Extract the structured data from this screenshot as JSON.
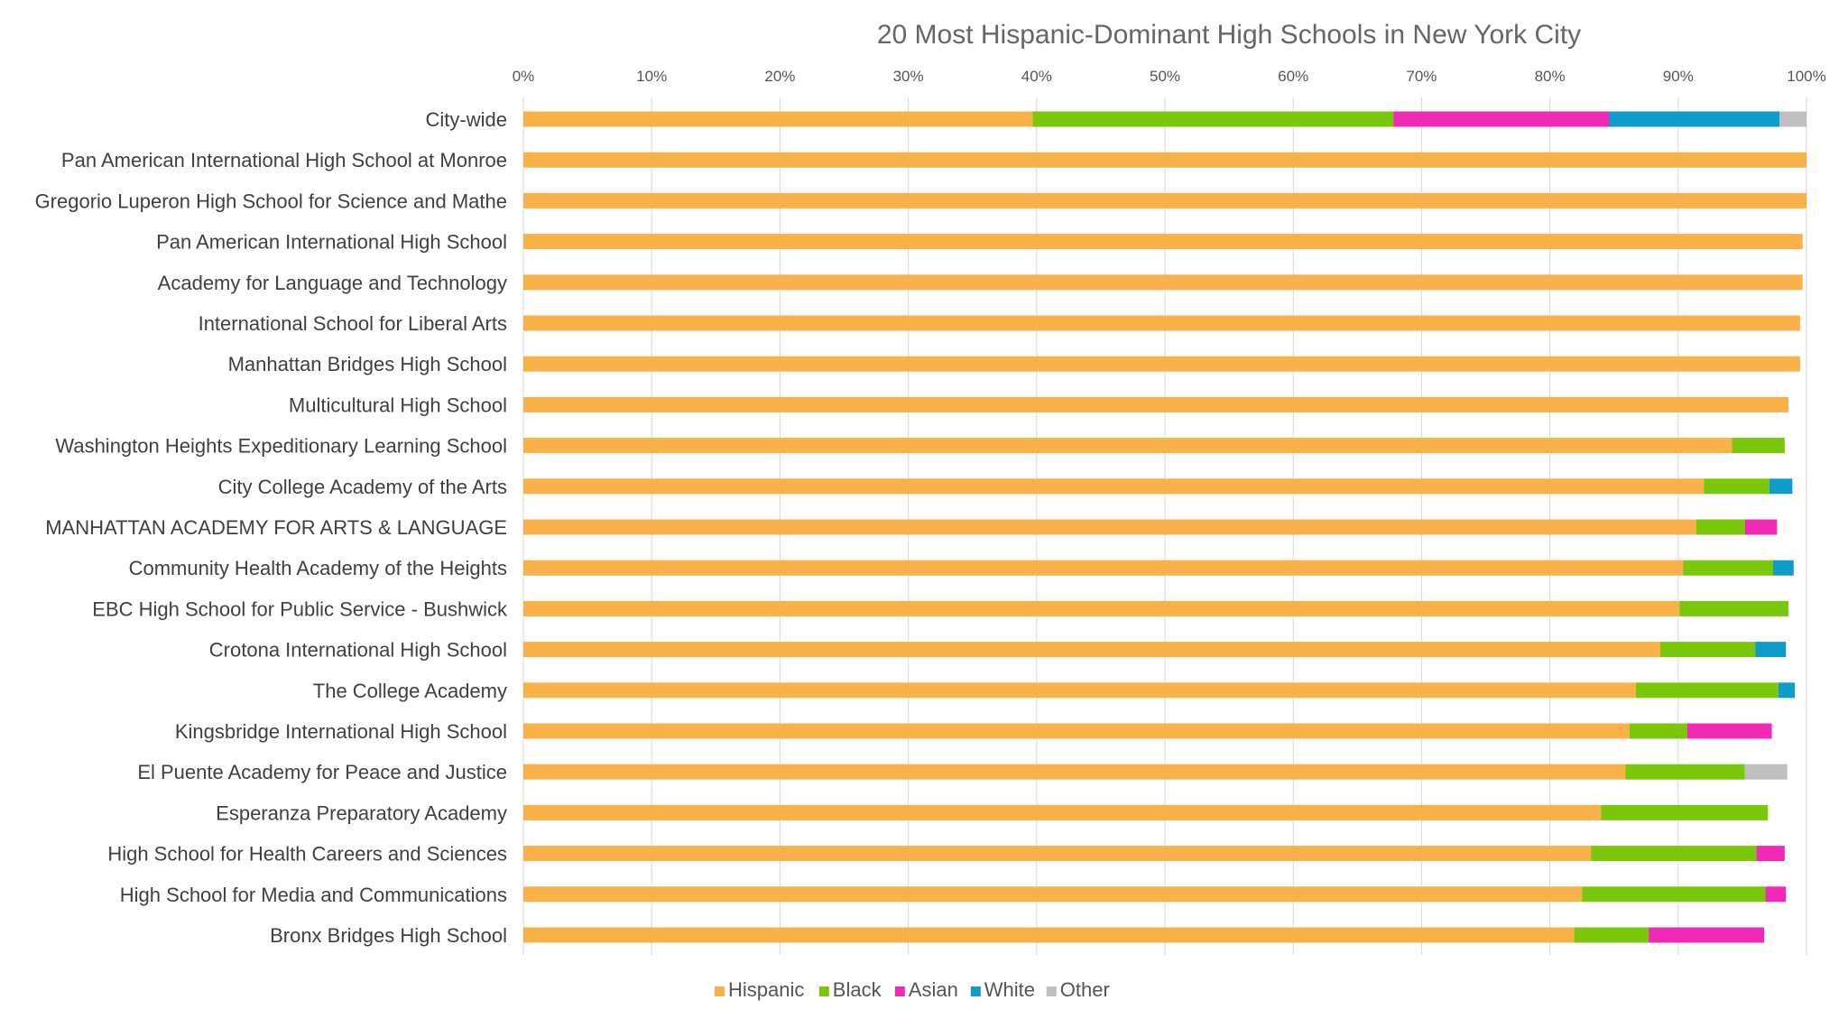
{
  "chart_data": {
    "type": "bar",
    "orientation": "horizontal",
    "stacked": true,
    "title": "20 Most Hispanic-Dominant High Schools in New York City",
    "xlabel": "",
    "ylabel": "",
    "xlim": [
      0,
      100
    ],
    "x_ticks": [
      "0%",
      "10%",
      "20%",
      "30%",
      "40%",
      "50%",
      "60%",
      "70%",
      "80%",
      "90%",
      "100%"
    ],
    "grid": true,
    "legend_position": "bottom",
    "categories": [
      "City-wide",
      "Pan American International High School at Monroe",
      "Gregorio Luperon High School for Science and Mathe",
      "Pan American International High School",
      "Academy for Language and Technology",
      "International School for Liberal Arts",
      "Manhattan Bridges High School",
      "Multicultural High School",
      "Washington Heights Expeditionary Learning School",
      "City College Academy of the Arts",
      "MANHATTAN ACADEMY FOR ARTS & LANGUAGE",
      "Community Health Academy of the Heights",
      "EBC High School for Public Service - Bushwick",
      "Crotona International High School",
      "The College Academy",
      "Kingsbridge International High School",
      "El Puente Academy for Peace and Justice",
      "Esperanza Preparatory Academy",
      "High School for Health Careers and Sciences",
      "High School for Media and Communications",
      "Bronx Bridges High School"
    ],
    "series": [
      {
        "name": "Hispanic",
        "color": "#F9B14A",
        "values": [
          39.7,
          100,
          100,
          99.7,
          99.7,
          99.5,
          99.5,
          98.6,
          94.2,
          92.0,
          91.4,
          90.4,
          90.1,
          88.6,
          86.7,
          86.2,
          85.9,
          84.0,
          83.2,
          82.5,
          81.9
        ]
      },
      {
        "name": "Black",
        "color": "#7AC70C",
        "values": [
          28.1,
          0,
          0,
          0,
          0,
          0,
          0,
          0,
          4.1,
          5.1,
          3.8,
          7.0,
          8.5,
          7.4,
          11.1,
          4.5,
          9.3,
          13.0,
          12.9,
          14.3,
          5.8
        ]
      },
      {
        "name": "Asian",
        "color": "#F02AB4",
        "values": [
          16.8,
          0,
          0,
          0,
          0,
          0,
          0,
          0,
          0,
          0,
          2.5,
          0,
          0,
          0,
          0,
          6.6,
          0,
          0,
          2.2,
          1.6,
          9.0
        ]
      },
      {
        "name": "White",
        "color": "#109CC9",
        "values": [
          13.3,
          0,
          0,
          0,
          0,
          0,
          0,
          0,
          0,
          1.8,
          0,
          1.6,
          0,
          2.4,
          1.3,
          0,
          0,
          0,
          0,
          0,
          0
        ]
      },
      {
        "name": "Other",
        "color": "#BFBFBF",
        "values": [
          2.1,
          0,
          0,
          0,
          0,
          0,
          0,
          0,
          0,
          0,
          0,
          0,
          0,
          0,
          0,
          0,
          3.3,
          0,
          0,
          0,
          0
        ]
      }
    ]
  }
}
